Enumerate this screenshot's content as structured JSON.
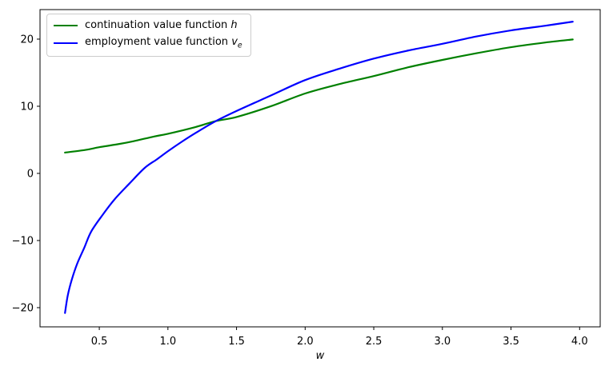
{
  "figure": {
    "background": "#ffffff",
    "axis_color": "#000000",
    "tick_label_color": "#000000"
  },
  "legend": {
    "position": "upper-left",
    "items": [
      {
        "label": "continuation value function",
        "math": "h",
        "math_sub": "",
        "color": "#008000"
      },
      {
        "label": "employment value function",
        "math": "v",
        "math_sub": "e",
        "color": "#0000ff"
      }
    ]
  },
  "chart_data": {
    "type": "line",
    "title": "",
    "xlabel": "w",
    "ylabel": "",
    "grid": false,
    "legend_position": "upper left",
    "xlim": [
      0.068,
      4.15
    ],
    "ylim": [
      -22.86,
      24.4
    ],
    "x_tick_values": [
      0.5,
      1.0,
      1.5,
      2.0,
      2.5,
      3.0,
      3.5,
      4.0
    ],
    "x_tick_labels": [
      "0.5",
      "1.0",
      "1.5",
      "2.0",
      "2.5",
      "3.0",
      "3.5",
      "4.0"
    ],
    "y_tick_values": [
      -20,
      -10,
      0,
      10,
      20
    ],
    "y_tick_labels": [
      "−20",
      "−10",
      "0",
      "10",
      "20"
    ],
    "series": [
      {
        "name": "continuation value function h",
        "color": "#008000",
        "line_width": 2.2,
        "points": [
          [
            0.25,
            3.1
          ],
          [
            0.4,
            3.5
          ],
          [
            0.5,
            3.9
          ],
          [
            0.65,
            4.4
          ],
          [
            0.75,
            4.8
          ],
          [
            0.9,
            5.5
          ],
          [
            1.0,
            5.9
          ],
          [
            1.2,
            6.9
          ],
          [
            1.35,
            7.8
          ],
          [
            1.5,
            8.4
          ],
          [
            1.75,
            10.0
          ],
          [
            2.0,
            11.9
          ],
          [
            2.25,
            13.3
          ],
          [
            2.5,
            14.5
          ],
          [
            2.75,
            15.8
          ],
          [
            3.0,
            16.9
          ],
          [
            3.25,
            17.9
          ],
          [
            3.5,
            18.8
          ],
          [
            3.75,
            19.5
          ],
          [
            3.95,
            19.95
          ]
        ]
      },
      {
        "name": "employment value function v_e",
        "color": "#0000ff",
        "line_width": 2.2,
        "points": [
          [
            0.25,
            -20.8
          ],
          [
            0.27,
            -18.2
          ],
          [
            0.3,
            -15.8
          ],
          [
            0.34,
            -13.4
          ],
          [
            0.39,
            -11.1
          ],
          [
            0.44,
            -8.7
          ],
          [
            0.52,
            -6.3
          ],
          [
            0.61,
            -3.9
          ],
          [
            0.72,
            -1.5
          ],
          [
            0.83,
            0.8
          ],
          [
            0.92,
            2.1
          ],
          [
            1.0,
            3.3
          ],
          [
            1.1,
            4.7
          ],
          [
            1.2,
            6.0
          ],
          [
            1.35,
            7.8
          ],
          [
            1.5,
            9.3
          ],
          [
            1.75,
            11.6
          ],
          [
            2.0,
            13.9
          ],
          [
            2.25,
            15.6
          ],
          [
            2.5,
            17.1
          ],
          [
            2.75,
            18.3
          ],
          [
            3.0,
            19.3
          ],
          [
            3.25,
            20.4
          ],
          [
            3.5,
            21.3
          ],
          [
            3.75,
            22.0
          ],
          [
            3.95,
            22.6
          ]
        ]
      }
    ]
  }
}
